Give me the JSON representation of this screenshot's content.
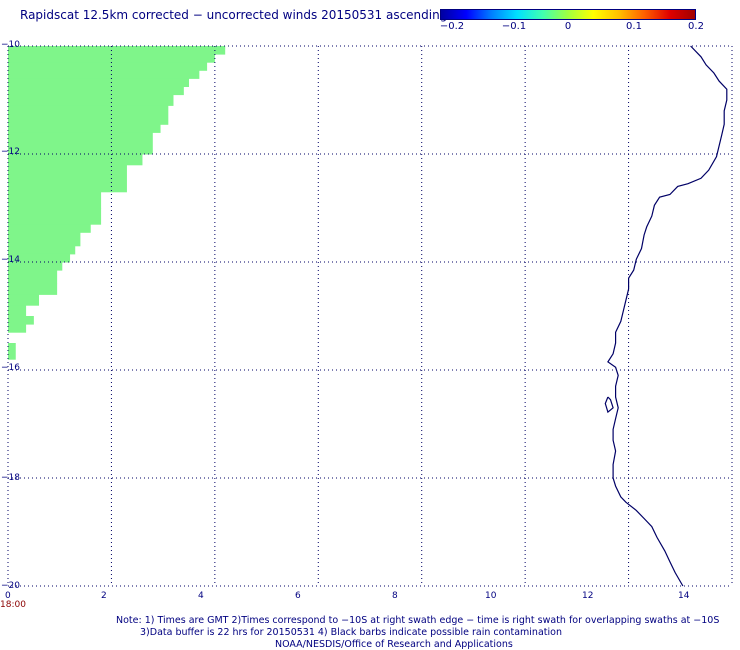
{
  "title": "Rapidscat 12.5km corrected − uncorrected winds 20150531 ascending",
  "colorbar": {
    "labels": [
      "−0.2",
      "−0.1",
      "0",
      "0.1",
      "0.2"
    ],
    "colors": [
      "#0000a0",
      "#0000ff",
      "#0080ff",
      "#00e0ff",
      "#40ffb0",
      "#a0ff40",
      "#ffff00",
      "#ffc000",
      "#ff6000",
      "#e00000",
      "#a00000"
    ]
  },
  "axes": {
    "x_ticks": [
      "0",
      "2",
      "4",
      "6",
      "8",
      "10",
      "12",
      "14"
    ],
    "y_ticks": [
      "−10",
      "−12",
      "−14",
      "−16",
      "−18",
      "−20"
    ],
    "xlim": [
      0,
      14
    ],
    "ylim": [
      -20,
      -10
    ]
  },
  "time_label": "18:00",
  "notes": [
    "Note: 1) Times are GMT 2)Times correspond to −10S at right swath edge − time is right swath for overlapping swaths at −10S",
    "3)Data buffer is 22 hrs for 20150531 4) Black barbs indicate possible rain contamination",
    "NOAA/NESDIS/Office of Research and Applications"
  ],
  "swath": {
    "color": "#7ff58a",
    "rows": [
      [
        -10.0,
        -10.15,
        4.2
      ],
      [
        -10.15,
        -10.3,
        4.0
      ],
      [
        -10.3,
        -10.45,
        3.85
      ],
      [
        -10.45,
        -10.6,
        3.7
      ],
      [
        -10.6,
        -10.75,
        3.5
      ],
      [
        -10.75,
        -10.9,
        3.4
      ],
      [
        -10.9,
        -11.1,
        3.2
      ],
      [
        -11.1,
        -11.45,
        3.1
      ],
      [
        -11.45,
        -11.6,
        2.95
      ],
      [
        -11.6,
        -12.0,
        2.8
      ],
      [
        -12.0,
        -12.2,
        2.6
      ],
      [
        -12.2,
        -12.7,
        2.3
      ],
      [
        -12.7,
        -13.0,
        1.8
      ],
      [
        -13.0,
        -13.3,
        1.8
      ],
      [
        -13.3,
        -13.45,
        1.6
      ],
      [
        -13.45,
        -13.7,
        1.4
      ],
      [
        -13.7,
        -13.85,
        1.3
      ],
      [
        -13.85,
        -14.0,
        1.2
      ],
      [
        -14.0,
        -14.15,
        1.05
      ],
      [
        -14.15,
        -14.4,
        0.95
      ],
      [
        -14.4,
        -14.6,
        0.95
      ],
      [
        -14.6,
        -14.8,
        0.6
      ],
      [
        -14.8,
        -15.0,
        0.35
      ],
      [
        -15.0,
        -15.15,
        0.5
      ],
      [
        -15.15,
        -15.3,
        0.35
      ],
      [
        -15.5,
        -15.8,
        0.15
      ]
    ]
  },
  "coastline": {
    "color": "#000066",
    "points": [
      [
        13.2,
        -10.0
      ],
      [
        13.4,
        -10.2
      ],
      [
        13.5,
        -10.35
      ],
      [
        13.65,
        -10.5
      ],
      [
        13.75,
        -10.65
      ],
      [
        13.9,
        -10.8
      ],
      [
        13.9,
        -11.0
      ],
      [
        13.85,
        -11.2
      ],
      [
        13.85,
        -11.45
      ],
      [
        13.8,
        -11.65
      ],
      [
        13.75,
        -11.85
      ],
      [
        13.7,
        -12.05
      ],
      [
        13.55,
        -12.3
      ],
      [
        13.4,
        -12.45
      ],
      [
        13.15,
        -12.55
      ],
      [
        12.95,
        -12.6
      ],
      [
        12.8,
        -12.75
      ],
      [
        12.6,
        -12.8
      ],
      [
        12.5,
        -12.95
      ],
      [
        12.45,
        -13.15
      ],
      [
        12.35,
        -13.35
      ],
      [
        12.3,
        -13.5
      ],
      [
        12.25,
        -13.75
      ],
      [
        12.15,
        -13.95
      ],
      [
        12.1,
        -14.15
      ],
      [
        12.0,
        -14.3
      ],
      [
        12.0,
        -14.5
      ],
      [
        11.95,
        -14.7
      ],
      [
        11.9,
        -14.9
      ],
      [
        11.85,
        -15.1
      ],
      [
        11.75,
        -15.3
      ],
      [
        11.75,
        -15.5
      ],
      [
        11.7,
        -15.7
      ],
      [
        11.6,
        -15.85
      ],
      [
        11.75,
        -15.95
      ],
      [
        11.8,
        -16.1
      ],
      [
        11.75,
        -16.3
      ],
      [
        11.75,
        -16.5
      ],
      [
        11.8,
        -16.7
      ],
      [
        11.75,
        -16.9
      ],
      [
        11.7,
        -17.1
      ],
      [
        11.7,
        -17.3
      ],
      [
        11.75,
        -17.5
      ],
      [
        11.7,
        -17.75
      ],
      [
        11.7,
        -18.0
      ],
      [
        11.75,
        -18.15
      ],
      [
        11.85,
        -18.35
      ],
      [
        11.95,
        -18.45
      ],
      [
        12.15,
        -18.6
      ],
      [
        12.3,
        -18.75
      ],
      [
        12.45,
        -18.9
      ],
      [
        12.55,
        -19.1
      ],
      [
        12.7,
        -19.35
      ],
      [
        12.8,
        -19.55
      ],
      [
        12.9,
        -19.75
      ],
      [
        13.05,
        -20.0
      ]
    ],
    "islet": [
      [
        11.6,
        -16.5
      ],
      [
        11.55,
        -16.62
      ],
      [
        11.6,
        -16.78
      ],
      [
        11.7,
        -16.7
      ],
      [
        11.65,
        -16.55
      ],
      [
        11.6,
        -16.5
      ]
    ]
  }
}
